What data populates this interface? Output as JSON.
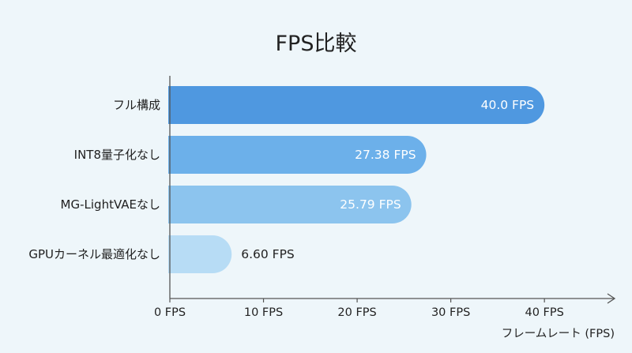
{
  "chart_data": {
    "type": "bar",
    "orientation": "horizontal",
    "title": "FPS比較",
    "xlabel": "フレームレート (FPS)",
    "ylabel": "",
    "categories": [
      "フル構成",
      "INT8量子化なし",
      "MG-LightVAEなし",
      "GPUカーネル最適化なし"
    ],
    "values": [
      40.0,
      27.38,
      25.79,
      6.6
    ],
    "value_labels": [
      "40.0 FPS",
      "27.38 FPS",
      "25.79 FPS",
      "6.60 FPS"
    ],
    "xticks": [
      0,
      10,
      20,
      30,
      40
    ],
    "xtick_labels": [
      "0 FPS",
      "10 FPS",
      "20 FPS",
      "30 FPS",
      "40 FPS"
    ],
    "xlim": [
      0,
      48
    ],
    "grid": false,
    "legend": "none",
    "bar_colors": [
      "#4f98e0",
      "#6cb0ea",
      "#8cc4ee",
      "#b7dcf5"
    ],
    "value_label_colors": [
      "#ffffff",
      "#ffffff",
      "#ffffff",
      "#222222"
    ],
    "axis_color": "#555555"
  }
}
